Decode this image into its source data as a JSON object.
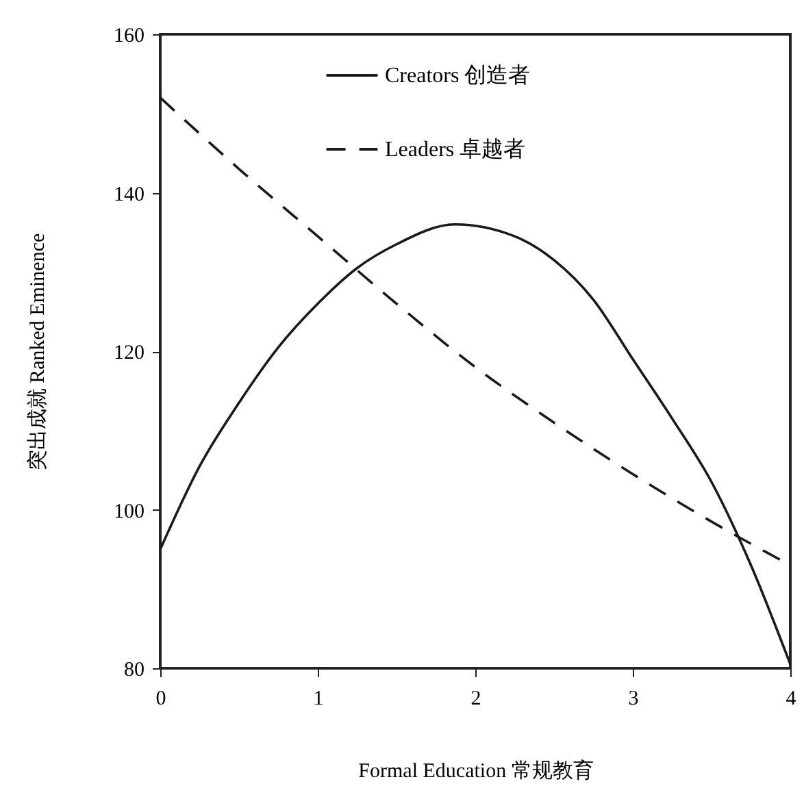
{
  "chart_data": {
    "type": "line",
    "xlabel": "Formal Education 常规教育",
    "ylabel": "突出成就 Ranked Eminence",
    "xlim": [
      0,
      4
    ],
    "xticks": [
      0,
      1,
      2,
      3,
      4
    ],
    "ylim": [
      80,
      160
    ],
    "yticks": [
      80,
      100,
      120,
      140,
      160
    ],
    "grid": false,
    "legend": "top",
    "marker": "none",
    "series": [
      {
        "name": "Creators 创造者",
        "color": "#1a1a1a",
        "line_style": "solid",
        "x": [
          0,
          0.25,
          0.5,
          0.75,
          1,
          1.25,
          1.5,
          1.87,
          2.25,
          2.5,
          2.75,
          3,
          3.25,
          3.5,
          3.75,
          4
        ],
        "values": [
          95,
          105.5,
          113.5,
          120.5,
          126,
          130.5,
          133.5,
          136,
          134.5,
          131.5,
          126.5,
          119,
          111.5,
          103.5,
          93,
          80.5
        ]
      },
      {
        "name": "Leaders 卓越者",
        "color": "#1a1a1a",
        "line_style": "dashed",
        "x": [
          0,
          0.5,
          1,
          1.5,
          2,
          2.5,
          3,
          3.5,
          4
        ],
        "values": [
          152,
          143,
          134.5,
          126,
          118,
          111,
          104.5,
          98.5,
          93
        ]
      }
    ]
  }
}
